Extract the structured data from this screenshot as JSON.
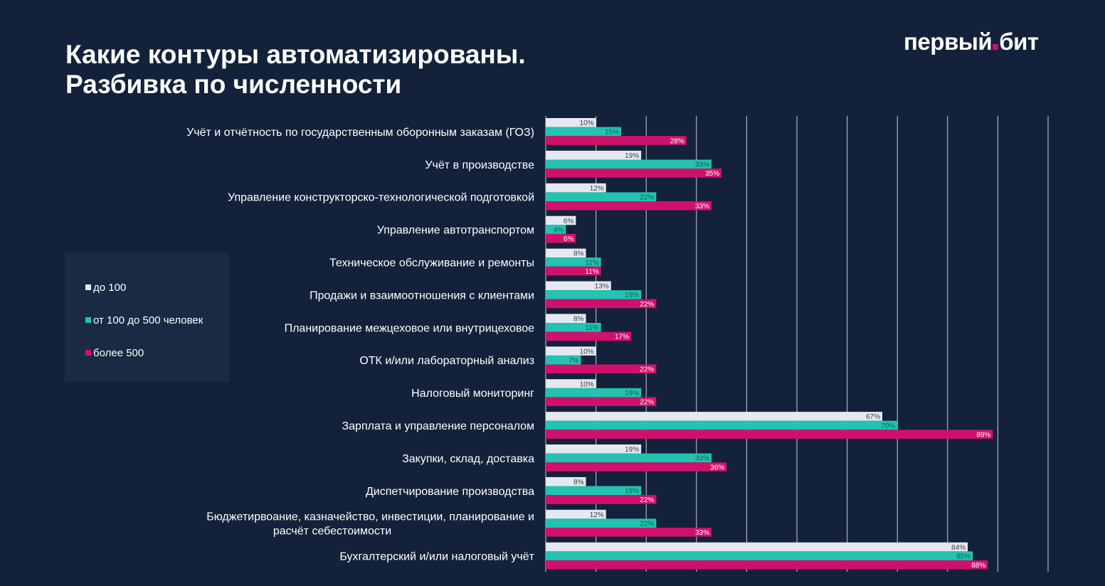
{
  "title": {
    "line1": "Какие контуры автоматизированы.",
    "line2": "Разбивка по численности"
  },
  "logo": {
    "left": "первый",
    "right": "бит"
  },
  "colors": {
    "background": "#13223a",
    "series_small": "#e5e8ee",
    "series_medium": "#22c3b0",
    "series_large": "#d0116b"
  },
  "chart_data": {
    "type": "bar",
    "orientation": "horizontal",
    "xlim": [
      0,
      100
    ],
    "grid": true,
    "legend_position": "left",
    "categories": [
      "Учёт и отчётность по государственным оборонным заказам (ГОЗ)",
      "Учёт в производстве",
      "Управление конструкторско-технологической подготовкой",
      "Управление автотранспортом",
      "Техническое обслуживание и ремонты",
      "Продажи и взаимоотношения с клиентами",
      "Планирование межцеховое или внутрицеховое",
      "ОТК и/или лабораторный анализ",
      "Налоговый мониторинг",
      "Зарплата и управление персоналом",
      "Закупки, склад, доставка",
      "Диспетчирование производства",
      "Бюджетирвоание, казначейство, инвестиции, планирование и расчёт себестоимости",
      "Бухгалтерский и/или налоговый учёт"
    ],
    "series": [
      {
        "name": "до 100",
        "color": "#e5e8ee",
        "values": [
          10,
          19,
          12,
          6,
          8,
          13,
          8,
          10,
          10,
          67,
          19,
          8,
          12,
          84
        ]
      },
      {
        "name": "от 100 до 500 человек",
        "color": "#22c3b0",
        "values": [
          15,
          33,
          22,
          4,
          11,
          19,
          11,
          7,
          19,
          70,
          33,
          19,
          22,
          85
        ]
      },
      {
        "name": "более 500",
        "color": "#d0116b",
        "values": [
          28,
          35,
          33,
          6,
          11,
          22,
          17,
          22,
          22,
          89,
          36,
          22,
          33,
          88
        ]
      }
    ]
  }
}
